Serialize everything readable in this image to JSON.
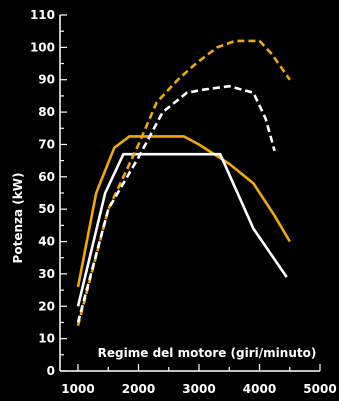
{
  "chart_data": {
    "type": "line",
    "title": "",
    "xlabel": "Regime del motore (giri/minuto)",
    "ylabel": "Potenza (kW)",
    "xlim": [
      1000,
      5000
    ],
    "ylim": [
      0,
      110
    ],
    "x_ticks": [
      1000,
      2000,
      3000,
      4000,
      5000
    ],
    "y_ticks": [
      0,
      10,
      20,
      30,
      40,
      50,
      60,
      70,
      80,
      90,
      100,
      110
    ],
    "grid": false,
    "legend": "none",
    "series": [
      {
        "style": "solid",
        "color": "#F2A900",
        "x": [
          1000,
          1300,
          1600,
          1850,
          2500,
          2750,
          3000,
          3500,
          3900,
          4250,
          4500
        ],
        "y": [
          26,
          55,
          69,
          72.5,
          72.5,
          72.5,
          70,
          64,
          58,
          48,
          40
        ]
      },
      {
        "style": "solid",
        "color": "#FFFFFF",
        "x": [
          1000,
          1450,
          1750,
          3350,
          3900,
          4450
        ],
        "y": [
          20,
          55,
          67,
          67,
          44,
          29
        ]
      },
      {
        "style": "dashed",
        "color": "#F2A900",
        "x": [
          1000,
          1500,
          2000,
          2300,
          2650,
          2950,
          3300,
          3600,
          4000,
          4200,
          4500
        ],
        "y": [
          14,
          50,
          70,
          83,
          90,
          95,
          100,
          102,
          102,
          98,
          90
        ]
      },
      {
        "style": "dashed",
        "color": "#FFFFFF",
        "x": [
          1000,
          1500,
          2000,
          2400,
          2800,
          3100,
          3500,
          3900,
          4100,
          4250
        ],
        "y": [
          15,
          50,
          66,
          80,
          86,
          87,
          88,
          86,
          78,
          68
        ]
      }
    ]
  }
}
